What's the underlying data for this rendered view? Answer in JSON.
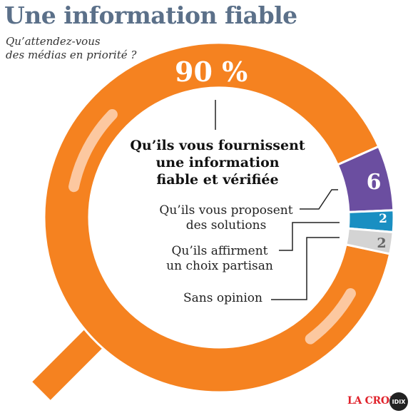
{
  "header": {
    "title": "Une information fiable",
    "subtitle_lines": [
      "Qu’attendez-vous",
      "des médias en priorité ?"
    ]
  },
  "chart_data": {
    "type": "pie",
    "style": "donut",
    "unit": "%",
    "main_value_label": "90 %",
    "slices": [
      {
        "label_lines": [
          "Qu’ils vous fournissent",
          "une information",
          "fiable et vérifiée"
        ],
        "value": 90,
        "value_label": "90 %",
        "color": "#f58220"
      },
      {
        "label_lines": [
          "Qu’ils vous proposent",
          "des solutions"
        ],
        "value": 6,
        "value_label": "6",
        "color": "#6b4ea0"
      },
      {
        "label_lines": [
          "Qu’ils affirment",
          "un choix partisan"
        ],
        "value": 2,
        "value_label": "2",
        "color": "#1a8fc2"
      },
      {
        "label_lines": [
          "Sans opinion"
        ],
        "value": 2,
        "value_label": "2",
        "color": "#d4d4d4"
      }
    ]
  },
  "colors": {
    "title": "#5b7089",
    "highlight": "#fcc8a0",
    "handle": "#f58220",
    "brand": "#e0222b"
  },
  "branding": {
    "logo_text": "LA CROIX",
    "badge_text": "IDIX"
  }
}
